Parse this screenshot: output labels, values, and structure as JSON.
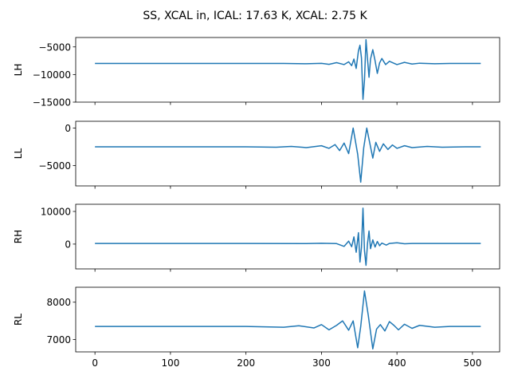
{
  "figure": {
    "title": "SS, XCAL in, ICAL: 17.63 K, XCAL: 2.75 K"
  },
  "chart_data": [
    {
      "type": "line",
      "ylabel": "LH",
      "xlim": [
        -25.5,
        536
      ],
      "ylim": [
        -15000,
        -3300
      ],
      "yticks": [
        -15000,
        -10000,
        -5000
      ],
      "ytick_labels": [
        "−15000",
        "−10000",
        "−5000"
      ],
      "xticks": [
        0,
        100,
        200,
        300,
        400,
        500
      ],
      "xtick_labels": [],
      "series": [
        {
          "color": "#1f77b4",
          "x": [
            0,
            100,
            200,
            250,
            280,
            300,
            310,
            320,
            330,
            336,
            340,
            343,
            346,
            349,
            351,
            353,
            355,
            357,
            359,
            361,
            363,
            365,
            368,
            371,
            374,
            377,
            380,
            385,
            390,
            400,
            410,
            420,
            430,
            450,
            470,
            511
          ],
          "y": [
            -8000,
            -8000,
            -8000,
            -8000,
            -8050,
            -7980,
            -8150,
            -7850,
            -8200,
            -7700,
            -8400,
            -7200,
            -8900,
            -5700,
            -4700,
            -7000,
            -14500,
            -11000,
            -3700,
            -7200,
            -10500,
            -7200,
            -5500,
            -7500,
            -9800,
            -7900,
            -7100,
            -8200,
            -7600,
            -8200,
            -7800,
            -8100,
            -7950,
            -8050,
            -8000,
            -8000
          ]
        }
      ]
    },
    {
      "type": "line",
      "ylabel": "LL",
      "xlim": [
        -25.5,
        536
      ],
      "ylim": [
        -7700,
        900
      ],
      "yticks": [
        -5000,
        0
      ],
      "ytick_labels": [
        "−5000",
        "0"
      ],
      "xticks": [
        0,
        100,
        200,
        300,
        400,
        500
      ],
      "xtick_labels": [],
      "series": [
        {
          "color": "#1f77b4",
          "x": [
            0,
            100,
            200,
            240,
            260,
            280,
            300,
            310,
            318,
            324,
            330,
            336,
            342,
            348,
            352,
            356,
            360,
            364,
            368,
            372,
            377,
            382,
            388,
            394,
            400,
            410,
            420,
            440,
            460,
            490,
            511
          ],
          "y": [
            -2500,
            -2500,
            -2500,
            -2550,
            -2450,
            -2600,
            -2350,
            -2700,
            -2200,
            -3000,
            -2000,
            -3400,
            0,
            -3500,
            -7200,
            -2600,
            0,
            -2000,
            -4000,
            -1900,
            -3100,
            -2100,
            -2850,
            -2250,
            -2700,
            -2350,
            -2600,
            -2450,
            -2550,
            -2500,
            -2500
          ]
        }
      ]
    },
    {
      "type": "line",
      "ylabel": "RH",
      "xlim": [
        -25.5,
        536
      ],
      "ylim": [
        -7600,
        12200
      ],
      "yticks": [
        0,
        10000
      ],
      "ytick_labels": [
        "0",
        "10000"
      ],
      "xticks": [
        0,
        100,
        200,
        300,
        400,
        500
      ],
      "xtick_labels": [],
      "series": [
        {
          "color": "#1f77b4",
          "x": [
            0,
            100,
            200,
            280,
            300,
            320,
            330,
            336,
            340,
            343,
            346,
            349,
            351,
            353,
            355,
            357,
            359,
            361,
            363,
            365,
            368,
            371,
            374,
            377,
            380,
            386,
            390,
            400,
            410,
            420,
            450,
            511
          ],
          "y": [
            200,
            200,
            200,
            150,
            250,
            150,
            -700,
            900,
            -800,
            2200,
            -2500,
            3500,
            -5500,
            -1000,
            11000,
            -2000,
            -6500,
            200,
            4000,
            -1400,
            1300,
            -900,
            800,
            -500,
            300,
            -300,
            200,
            400,
            100,
            200,
            200,
            200
          ]
        }
      ]
    },
    {
      "type": "line",
      "ylabel": "RL",
      "xlim": [
        -25.5,
        536
      ],
      "ylim": [
        6670,
        8400
      ],
      "yticks": [
        7000,
        8000
      ],
      "ytick_labels": [
        "7000",
        "8000"
      ],
      "xticks": [
        0,
        100,
        200,
        300,
        400,
        500
      ],
      "xtick_labels": [
        "0",
        "100",
        "200",
        "300",
        "400",
        "500"
      ],
      "series": [
        {
          "color": "#1f77b4",
          "x": [
            0,
            100,
            200,
            250,
            270,
            290,
            300,
            310,
            320,
            328,
            336,
            342,
            348,
            352,
            357,
            362,
            368,
            373,
            378,
            384,
            390,
            396,
            402,
            410,
            420,
            430,
            450,
            470,
            511
          ],
          "y": [
            7350,
            7350,
            7350,
            7330,
            7370,
            7310,
            7400,
            7260,
            7380,
            7500,
            7250,
            7500,
            6780,
            7350,
            8300,
            7650,
            6750,
            7280,
            7400,
            7230,
            7480,
            7380,
            7260,
            7410,
            7300,
            7380,
            7330,
            7350,
            7350
          ]
        }
      ]
    }
  ]
}
